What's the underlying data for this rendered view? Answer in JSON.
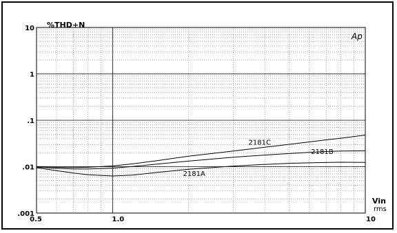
{
  "chart_data": {
    "type": "line",
    "title": "",
    "ylabel": "%THD+N",
    "xlabel": "Vin",
    "xunit": "rms",
    "x_scale": "log",
    "y_scale": "log",
    "xlim": [
      0.5,
      10
    ],
    "ylim": [
      0.001,
      10
    ],
    "x_ticks": [
      "0.5",
      "1.0",
      "10"
    ],
    "y_ticks": [
      "10",
      "1",
      ".1",
      ".01",
      ".001"
    ],
    "logo": "Ap",
    "grid": true,
    "series": [
      {
        "name": "2181A",
        "x": [
          0.5,
          0.6,
          0.7,
          0.8,
          1.0,
          1.2,
          1.5,
          2.0,
          3.0,
          4.0,
          5.0,
          6.0,
          7.0,
          8.0,
          10.0
        ],
        "y": [
          0.0095,
          0.0082,
          0.0073,
          0.0067,
          0.0063,
          0.0066,
          0.0075,
          0.0088,
          0.0103,
          0.0112,
          0.0118,
          0.0121,
          0.0123,
          0.0125,
          0.0124
        ]
      },
      {
        "name": "2181B",
        "x": [
          0.5,
          0.6,
          0.7,
          0.8,
          1.0,
          1.2,
          1.5,
          2.0,
          3.0,
          4.0,
          5.0,
          6.0,
          7.0,
          8.0,
          10.0
        ],
        "y": [
          0.0098,
          0.0092,
          0.0089,
          0.0089,
          0.0093,
          0.0101,
          0.0114,
          0.0132,
          0.016,
          0.0178,
          0.0192,
          0.0203,
          0.0212,
          0.0218,
          0.022
        ]
      },
      {
        "name": "2181C",
        "x": [
          0.5,
          0.6,
          0.7,
          0.8,
          1.0,
          1.2,
          1.5,
          2.0,
          3.0,
          4.0,
          5.0,
          6.0,
          7.0,
          8.0,
          10.0
        ],
        "y": [
          0.0101,
          0.0097,
          0.0096,
          0.0097,
          0.0104,
          0.0115,
          0.0135,
          0.0168,
          0.0218,
          0.0262,
          0.0303,
          0.0342,
          0.0378,
          0.041,
          0.048
        ]
      }
    ]
  }
}
